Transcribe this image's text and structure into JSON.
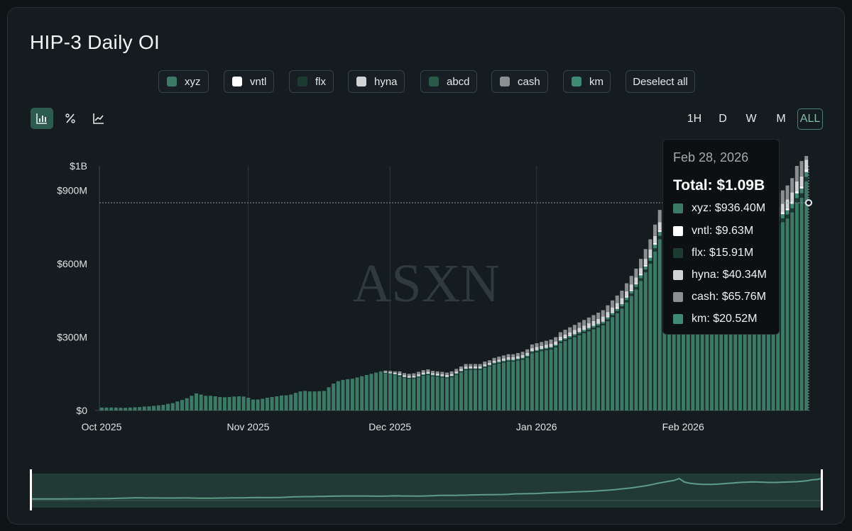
{
  "title": "HIP-3 Daily OI",
  "legend": {
    "items": [
      {
        "label": "xyz",
        "color": "#3c7a65"
      },
      {
        "label": "vntl",
        "color": "#ffffff"
      },
      {
        "label": "flx",
        "color": "#1c3b31"
      },
      {
        "label": "hyna",
        "color": "#d1d3d4"
      },
      {
        "label": "abcd",
        "color": "#285a47"
      },
      {
        "label": "cash",
        "color": "#8c8f91"
      },
      {
        "label": "km",
        "color": "#3f8a72"
      }
    ],
    "deselect_label": "Deselect all"
  },
  "modes": [
    "bar-chart-icon",
    "percent-icon",
    "line-chart-icon"
  ],
  "ranges": [
    {
      "label": "1H",
      "active": false
    },
    {
      "label": "D",
      "active": false
    },
    {
      "label": "W",
      "active": false
    },
    {
      "label": "M",
      "active": false
    },
    {
      "label": "ALL",
      "active": true
    }
  ],
  "watermark": "ASXN",
  "tooltip": {
    "date": "Feb 28, 2026",
    "total": "Total: $1.09B",
    "rows": [
      {
        "label": "xyz: $936.40M",
        "color": "#3c7a65"
      },
      {
        "label": "vntl: $9.63M",
        "color": "#ffffff"
      },
      {
        "label": "flx: $15.91M",
        "color": "#1c3b31"
      },
      {
        "label": "hyna: $40.34M",
        "color": "#d1d3d4"
      },
      {
        "label": "cash: $65.76M",
        "color": "#8c8f91"
      },
      {
        "label": "km: $20.52M",
        "color": "#3f8a72"
      }
    ]
  },
  "chart_data": {
    "type": "bar",
    "stacked": true,
    "ylim": [
      0,
      1000
    ],
    "y_ticks": [
      {
        "value": 0,
        "label": "$0"
      },
      {
        "value": 300,
        "label": "$300M"
      },
      {
        "value": 600,
        "label": "$600M"
      },
      {
        "value": 900,
        "label": "$900M"
      },
      {
        "value": 1000,
        "label": "$1B"
      }
    ],
    "x_ticks": [
      {
        "day": 0,
        "label": "Oct 2025"
      },
      {
        "day": 31,
        "label": "Nov 2025"
      },
      {
        "day": 61,
        "label": "Dec 2025"
      },
      {
        "day": 92,
        "label": "Jan 2026"
      },
      {
        "day": 123,
        "label": "Feb 2026"
      }
    ],
    "x_start": "2025-10-01",
    "x_end": "2026-02-28",
    "series_order": [
      "xyz",
      "flx",
      "abcd",
      "km",
      "vntl",
      "hyna",
      "cash"
    ],
    "total_OI_musd": [
      12,
      12,
      12,
      12,
      11,
      11,
      12,
      13,
      14,
      16,
      17,
      19,
      21,
      23,
      27,
      30,
      37,
      43,
      50,
      60,
      70,
      65,
      60,
      60,
      58,
      55,
      54,
      55,
      57,
      58,
      57,
      52,
      45,
      45,
      48,
      52,
      55,
      58,
      61,
      62,
      65,
      72,
      78,
      80,
      78,
      78,
      79,
      80,
      95,
      110,
      120,
      125,
      128,
      130,
      135,
      140,
      145,
      150,
      155,
      160,
      163,
      162,
      160,
      160,
      153,
      150,
      152,
      158,
      165,
      168,
      162,
      160,
      158,
      155,
      160,
      170,
      180,
      190,
      190,
      190,
      190,
      200,
      205,
      215,
      220,
      225,
      230,
      230,
      235,
      240,
      250,
      270,
      275,
      280,
      285,
      290,
      300,
      320,
      330,
      340,
      350,
      360,
      370,
      380,
      390,
      400,
      410,
      430,
      450,
      470,
      490,
      520,
      550,
      580,
      620,
      660,
      700,
      760,
      820,
      870,
      920,
      960,
      1060,
      880,
      820,
      790,
      770,
      760,
      760,
      770,
      790,
      810,
      830,
      850,
      870,
      880,
      890,
      880,
      870,
      860,
      860,
      870,
      880,
      890,
      900,
      920,
      950,
      1000,
      1020,
      1090
    ],
    "xyz_OI_musd": [
      12,
      12,
      12,
      12,
      11,
      11,
      12,
      13,
      14,
      16,
      17,
      19,
      21,
      23,
      27,
      30,
      37,
      43,
      50,
      60,
      70,
      65,
      60,
      60,
      58,
      55,
      54,
      55,
      57,
      58,
      57,
      52,
      45,
      45,
      48,
      52,
      55,
      58,
      61,
      62,
      65,
      72,
      78,
      80,
      78,
      78,
      79,
      80,
      95,
      110,
      120,
      125,
      128,
      130,
      135,
      140,
      145,
      150,
      155,
      160,
      153,
      150,
      145,
      140,
      133,
      130,
      130,
      135,
      142,
      145,
      140,
      138,
      135,
      132,
      136,
      146,
      156,
      165,
      166,
      166,
      166,
      175,
      180,
      188,
      192,
      196,
      200,
      200,
      204,
      208,
      216,
      234,
      238,
      243,
      247,
      250,
      258,
      276,
      284,
      292,
      300,
      308,
      316,
      324,
      332,
      340,
      348,
      365,
      382,
      398,
      417,
      442,
      468,
      495,
      530,
      565,
      600,
      650,
      700,
      745,
      790,
      825,
      910,
      760,
      700,
      675,
      655,
      645,
      645,
      655,
      670,
      690,
      710,
      725,
      740,
      750,
      760,
      750,
      740,
      730,
      730,
      740,
      750,
      760,
      770,
      785,
      810,
      850,
      870,
      936.4
    ],
    "xyz_total_Feb28_musd": 936.4,
    "vntl_Feb28_musd": 9.63,
    "flx_Feb28_musd": 15.91,
    "hyna_Feb28_musd": 40.34,
    "cash_Feb28_musd": 65.76,
    "km_Feb28_musd": 20.52,
    "total_Feb28_busd": 1.09
  },
  "navigator": {
    "has_range_selector": true
  }
}
